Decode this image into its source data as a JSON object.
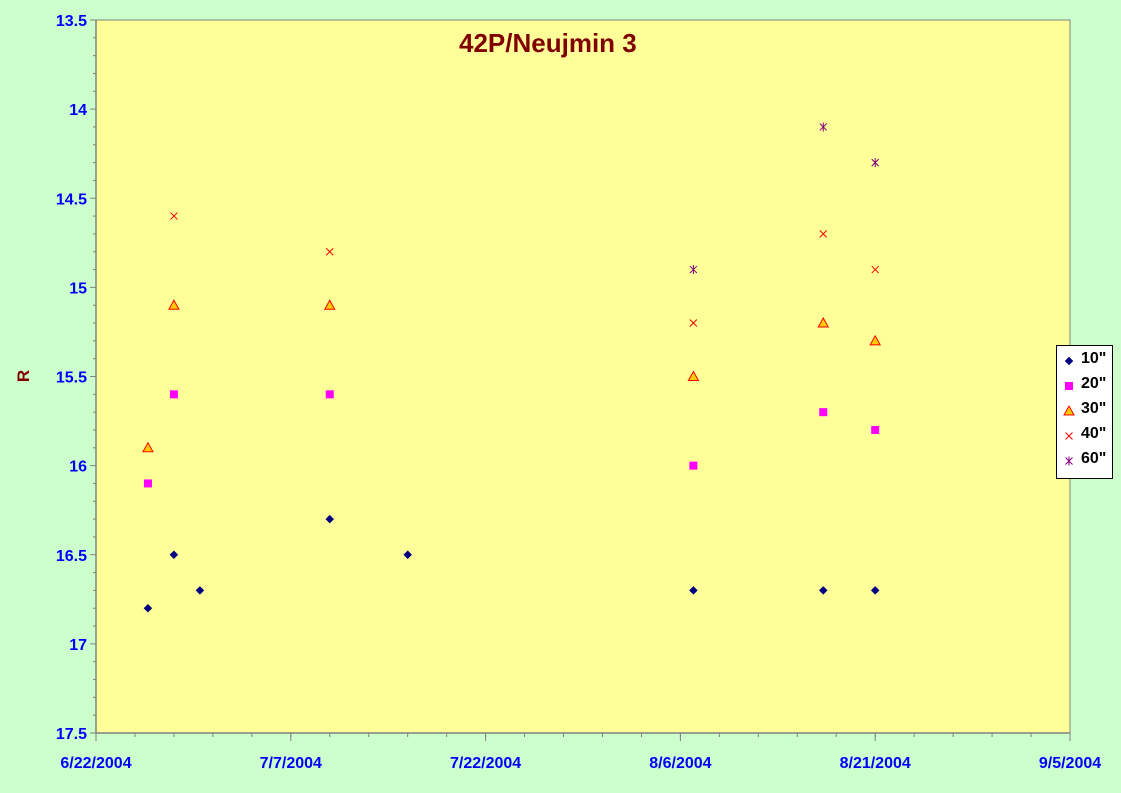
{
  "chart_data": {
    "type": "scatter",
    "title": "42P/Neujmin 3",
    "xlabel": "",
    "ylabel": "R",
    "x_type": "date",
    "xlim": [
      "2004-06-22",
      "2004-09-05"
    ],
    "x_tick_labels": [
      "6/22/2004",
      "7/7/2004",
      "7/22/2004",
      "8/6/2004",
      "8/21/2004",
      "9/5/2004"
    ],
    "x_tick_values": [
      "2004-06-22",
      "2004-07-07",
      "2004-07-22",
      "2004-08-06",
      "2004-08-21",
      "2004-09-05"
    ],
    "x_minor_tick_step_days": 3,
    "ylim": [
      13.5,
      17.5
    ],
    "y_reversed": true,
    "y_tick_labels": [
      "13.5",
      "14",
      "14.5",
      "15",
      "15.5",
      "16",
      "16.5",
      "17",
      "17.5"
    ],
    "y_tick_values": [
      13.5,
      14,
      14.5,
      15,
      15.5,
      16,
      16.5,
      17,
      17.5
    ],
    "grid": false,
    "legend_position": "right",
    "series": [
      {
        "name": "10\"",
        "marker": "diamond",
        "color": "#000080",
        "points": [
          {
            "x": "2004-06-26",
            "y": 16.8
          },
          {
            "x": "2004-06-28",
            "y": 16.5
          },
          {
            "x": "2004-06-30",
            "y": 16.7
          },
          {
            "x": "2004-07-10",
            "y": 16.3
          },
          {
            "x": "2004-07-16",
            "y": 16.5
          },
          {
            "x": "2004-08-07",
            "y": 16.7
          },
          {
            "x": "2004-08-17",
            "y": 16.7
          },
          {
            "x": "2004-08-21",
            "y": 16.7
          }
        ]
      },
      {
        "name": "20\"",
        "marker": "square",
        "color": "#ff00ff",
        "points": [
          {
            "x": "2004-06-26",
            "y": 16.1
          },
          {
            "x": "2004-06-28",
            "y": 15.6
          },
          {
            "x": "2004-07-10",
            "y": 15.6
          },
          {
            "x": "2004-08-07",
            "y": 16.0
          },
          {
            "x": "2004-08-17",
            "y": 15.7
          },
          {
            "x": "2004-08-21",
            "y": 15.8
          }
        ]
      },
      {
        "name": "30\"",
        "marker": "triangle",
        "color": "#ffcc00",
        "stroke": "#ff0000",
        "points": [
          {
            "x": "2004-06-26",
            "y": 15.9
          },
          {
            "x": "2004-06-28",
            "y": 15.1
          },
          {
            "x": "2004-07-10",
            "y": 15.1
          },
          {
            "x": "2004-08-07",
            "y": 15.5
          },
          {
            "x": "2004-08-17",
            "y": 15.2
          },
          {
            "x": "2004-08-21",
            "y": 15.3
          }
        ]
      },
      {
        "name": "40\"",
        "marker": "x",
        "color": "#ff0000",
        "points": [
          {
            "x": "2004-06-28",
            "y": 14.6
          },
          {
            "x": "2004-07-10",
            "y": 14.8
          },
          {
            "x": "2004-08-07",
            "y": 15.2
          },
          {
            "x": "2004-08-17",
            "y": 14.7
          },
          {
            "x": "2004-08-21",
            "y": 14.9
          }
        ]
      },
      {
        "name": "60\"",
        "marker": "star",
        "color": "#800080",
        "points": [
          {
            "x": "2004-08-07",
            "y": 14.9
          },
          {
            "x": "2004-08-17",
            "y": 14.1
          },
          {
            "x": "2004-08-21",
            "y": 14.3
          }
        ]
      }
    ]
  },
  "colors": {
    "page_background": "#ccffcc",
    "plot_background": "#ffff99",
    "title": "#800000",
    "tick_labels": "#0000ff",
    "axis_line": "#808080",
    "legend_background": "#ffffff"
  }
}
